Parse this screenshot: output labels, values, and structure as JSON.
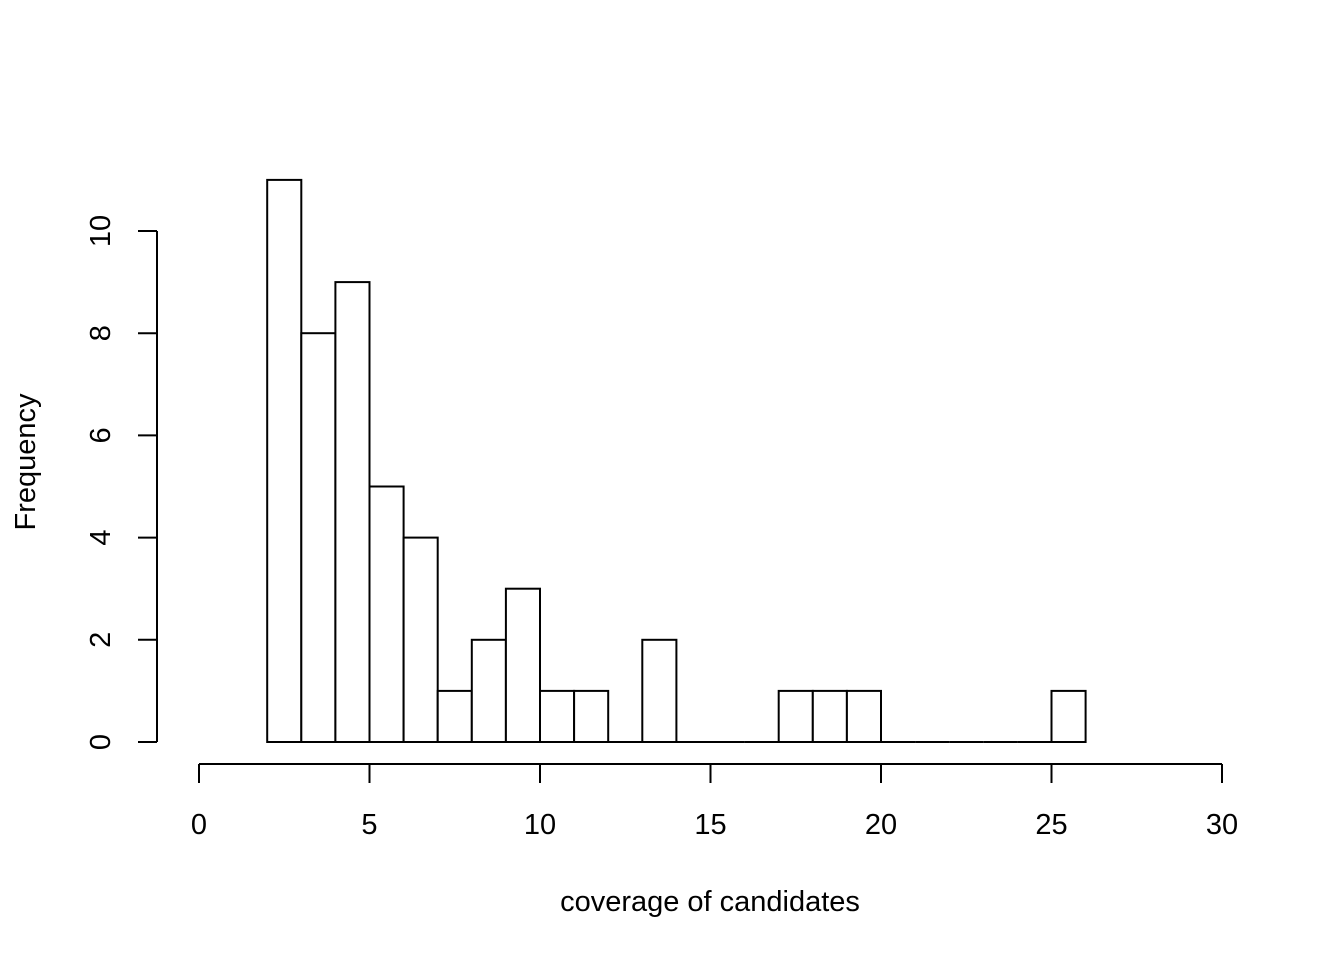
{
  "chart_data": {
    "type": "bar",
    "subtype": "histogram",
    "title": "",
    "xlabel": "coverage of candidates",
    "ylabel": "Frequency",
    "xlim": [
      0,
      30
    ],
    "ylim": [
      0,
      11
    ],
    "x_ticks": [
      0,
      5,
      10,
      15,
      20,
      25,
      30
    ],
    "y_ticks": [
      0,
      2,
      4,
      6,
      8,
      10
    ],
    "bins": [
      {
        "from": 2,
        "to": 3,
        "count": 11
      },
      {
        "from": 3,
        "to": 4,
        "count": 8
      },
      {
        "from": 4,
        "to": 5,
        "count": 9
      },
      {
        "from": 5,
        "to": 6,
        "count": 5
      },
      {
        "from": 6,
        "to": 7,
        "count": 4
      },
      {
        "from": 7,
        "to": 8,
        "count": 1
      },
      {
        "from": 8,
        "to": 9,
        "count": 2
      },
      {
        "from": 9,
        "to": 10,
        "count": 3
      },
      {
        "from": 10,
        "to": 11,
        "count": 1
      },
      {
        "from": 11,
        "to": 12,
        "count": 1
      },
      {
        "from": 12,
        "to": 13,
        "count": 0
      },
      {
        "from": 13,
        "to": 14,
        "count": 2
      },
      {
        "from": 14,
        "to": 15,
        "count": 0
      },
      {
        "from": 15,
        "to": 16,
        "count": 0
      },
      {
        "from": 16,
        "to": 17,
        "count": 0
      },
      {
        "from": 17,
        "to": 18,
        "count": 1
      },
      {
        "from": 18,
        "to": 19,
        "count": 1
      },
      {
        "from": 19,
        "to": 20,
        "count": 1
      },
      {
        "from": 20,
        "to": 21,
        "count": 0
      },
      {
        "from": 21,
        "to": 22,
        "count": 0
      },
      {
        "from": 22,
        "to": 23,
        "count": 0
      },
      {
        "from": 23,
        "to": 24,
        "count": 0
      },
      {
        "from": 24,
        "to": 25,
        "count": 0
      },
      {
        "from": 25,
        "to": 26,
        "count": 1
      }
    ],
    "grid": false,
    "legend": "none",
    "colors": {
      "bar_fill": "#ffffff",
      "bar_stroke": "#000000"
    }
  }
}
